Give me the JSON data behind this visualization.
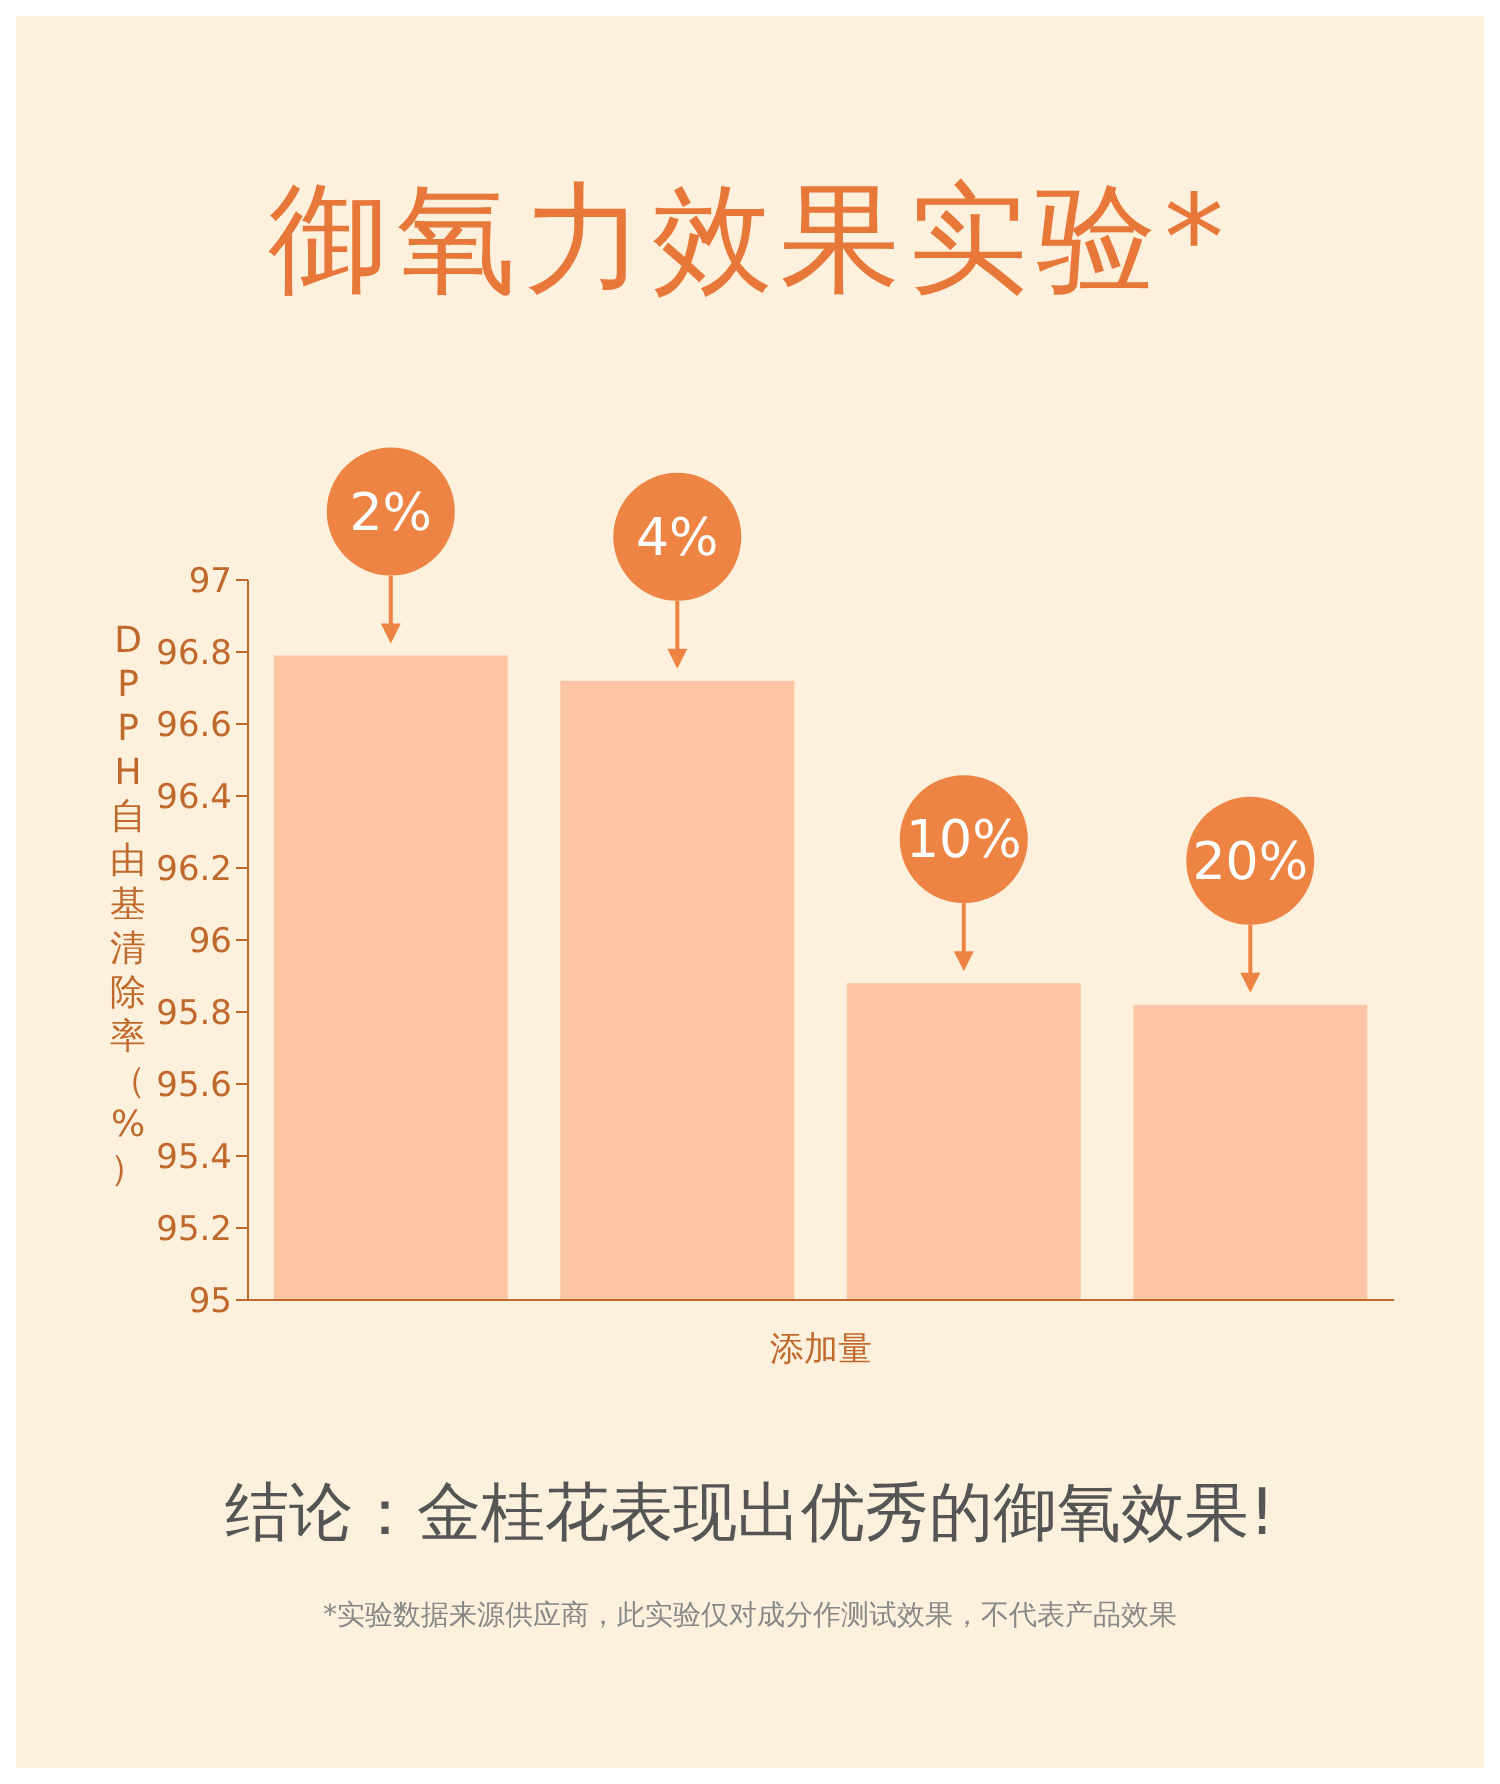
{
  "chart_data": {
    "type": "bar",
    "title": "御氧力效果实验*",
    "categories": [
      "2%",
      "4%",
      "10%",
      "20%"
    ],
    "values": [
      96.79,
      96.72,
      95.88,
      95.82
    ],
    "color": "#fcc6a4",
    "xlabel": "添加量",
    "ylabel": "DPPH自由基清除率（%）",
    "ylim": [
      95,
      97
    ],
    "yticks": [
      95,
      95.2,
      95.4,
      95.6,
      95.8,
      96,
      96.2,
      96.4,
      96.6,
      96.8,
      97
    ],
    "grid": false,
    "legend": false,
    "annotations": [
      "结论：金桂花表现出优秀的御氧效果!",
      "*实验数据来源供应商，此实验仅对成分作测试效果，不代表产品效果"
    ]
  }
}
